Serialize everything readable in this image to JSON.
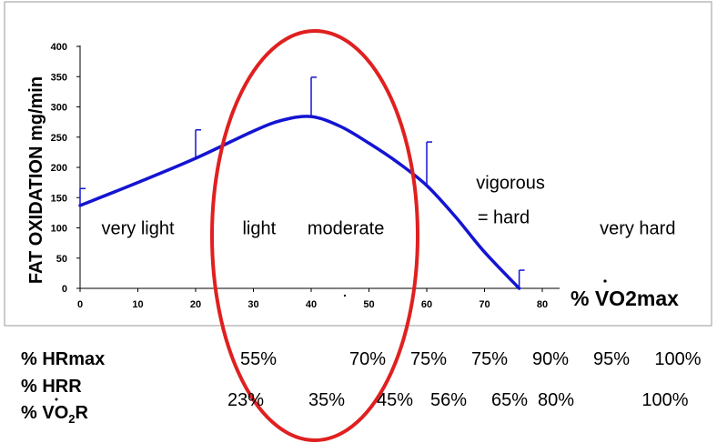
{
  "chart_data": {
    "type": "line",
    "ylabel": "FAT OXIDATION mg/min",
    "xlabel": "% VO2max",
    "xlim": [
      0,
      80
    ],
    "ylim": [
      0,
      400
    ],
    "xticks": [
      0,
      10,
      20,
      30,
      40,
      50,
      60,
      70,
      80
    ],
    "yticks": [
      0,
      50,
      100,
      150,
      200,
      250,
      300,
      350,
      400
    ],
    "curve": {
      "color": "#1414d2",
      "x": [
        0,
        10,
        20,
        30,
        35,
        40,
        45,
        50,
        55,
        60,
        65,
        70,
        76
      ],
      "y": [
        137,
        175,
        215,
        260,
        278,
        284,
        268,
        240,
        208,
        170,
        118,
        60,
        0
      ]
    },
    "error_bars": [
      {
        "x": 0,
        "y": 137,
        "top": 165
      },
      {
        "x": 20,
        "y": 215,
        "top": 262
      },
      {
        "x": 40,
        "y": 284,
        "top": 349
      },
      {
        "x": 60,
        "y": 170,
        "top": 242
      },
      {
        "x": 76,
        "y": 0,
        "top": 30
      }
    ],
    "stray_mark": ".",
    "zones": [
      {
        "label": "very light",
        "x": 10
      },
      {
        "label": "light",
        "x": 31
      },
      {
        "label": "moderate",
        "x": 46
      },
      {
        "label": "vigorous",
        "x": 74.5,
        "y": 175
      },
      {
        "label": "= hard",
        "x": 73.3,
        "y": 118
      },
      {
        "label": "very hard",
        "x": 96.5
      }
    ],
    "highlight": {
      "color": "#e02020",
      "shape": "ellipse"
    }
  },
  "intensity_table": {
    "rows": [
      {
        "label": "% HRmax",
        "values": [
          "55%",
          "70%",
          "75%",
          "75%",
          "90%",
          "95%",
          "100%"
        ]
      },
      {
        "label": "% HRR",
        "values": []
      },
      {
        "label": "% VO2R",
        "values": [
          "23%",
          "35%",
          "45%",
          "56%",
          "65%",
          "80%",
          "100%"
        ]
      }
    ]
  }
}
